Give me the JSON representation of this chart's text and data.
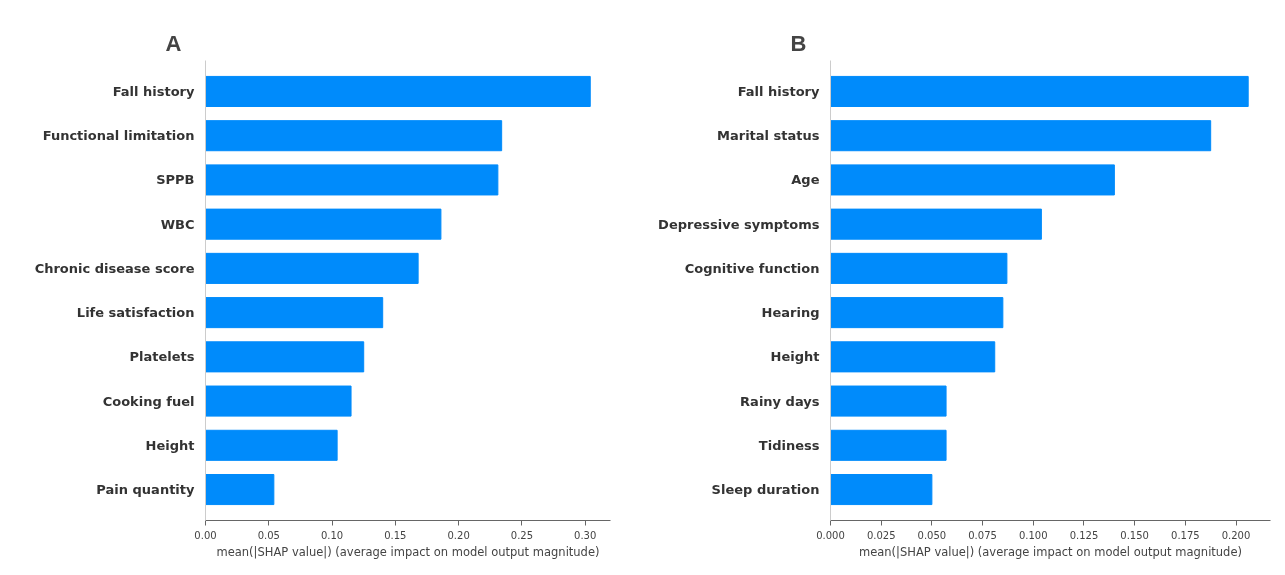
{
  "chart_data": [
    {
      "type": "bar",
      "orientation": "horizontal",
      "title": "A",
      "xlabel": "mean(|SHAP value|) (average impact on model output magnitude)",
      "categories": [
        "Fall history",
        "Functional limitation",
        "SPPB",
        "WBC",
        "Chronic disease score",
        "Life satisfaction",
        "Platelets",
        "Cooking fuel",
        "Height",
        "Pain quantity"
      ],
      "values": [
        0.304,
        0.234,
        0.231,
        0.186,
        0.168,
        0.14,
        0.125,
        0.115,
        0.104,
        0.054
      ],
      "color": "#008bfb",
      "xlim": [
        0,
        0.32
      ],
      "xticks": [
        {
          "value": 0,
          "label": "0.00"
        },
        0.05,
        {
          "value": 0.1,
          "label": "0.10"
        },
        0.15,
        {
          "value": 0.2,
          "label": "0.20"
        },
        0.25,
        {
          "value": 0.3,
          "label": "0.30"
        }
      ],
      "grid": false
    },
    {
      "type": "bar",
      "orientation": "horizontal",
      "title": "B",
      "xlabel": "mean(|SHAP value|) (average impact on model output magnitude)",
      "categories": [
        "Fall history",
        "Marital status",
        "Age",
        "Depressive symptoms",
        "Cognitive function",
        "Hearing",
        "Height",
        "Rainy days",
        "Tidiness",
        "Sleep duration"
      ],
      "values": [
        0.206,
        0.1875,
        0.14,
        0.104,
        0.087,
        0.085,
        0.081,
        0.057,
        0.057,
        0.05
      ],
      "color": "#008bfb",
      "xlim": [
        0,
        0.217
      ],
      "xticks": [
        {
          "value": 0,
          "label": "0.000"
        },
        0.025,
        {
          "value": 0.05,
          "label": "0.050"
        },
        0.075,
        {
          "value": 0.1,
          "label": "0.100"
        },
        0.125,
        {
          "value": 0.15,
          "label": "0.150"
        },
        0.175,
        {
          "value": 0.2,
          "label": "0.200"
        }
      ],
      "grid": false
    }
  ]
}
